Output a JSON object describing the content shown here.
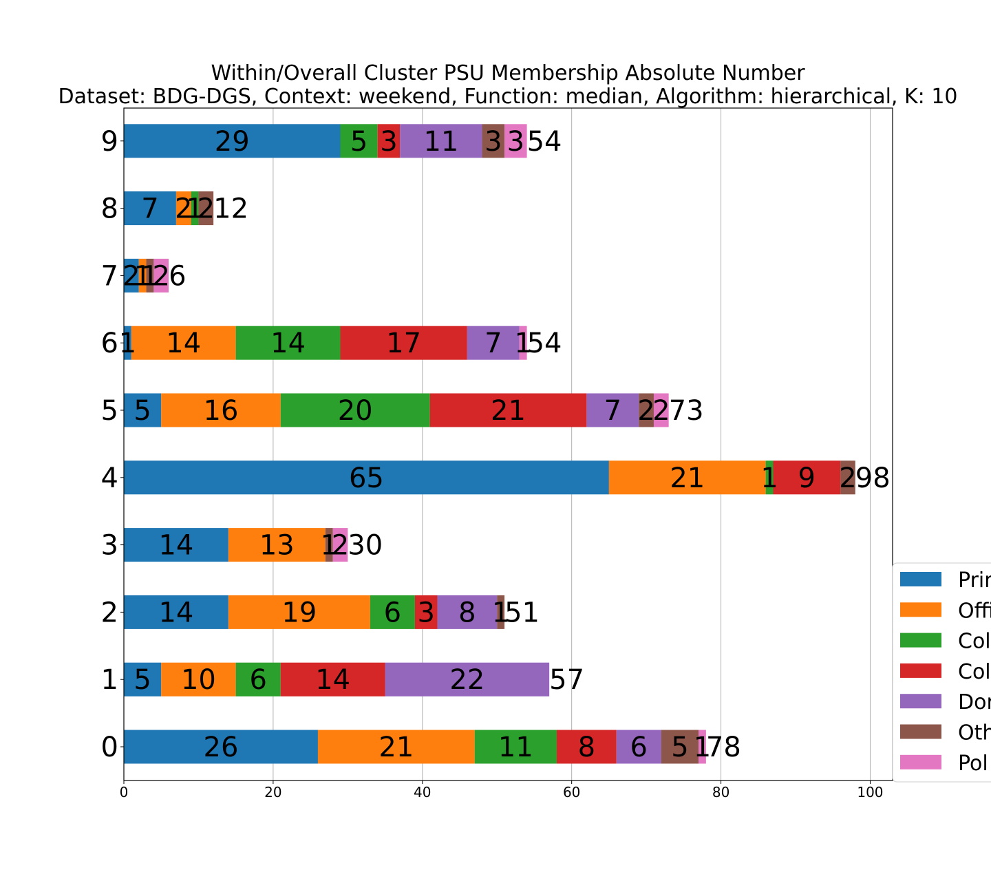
{
  "chart_data": {
    "type": "bar",
    "orientation": "horizontal",
    "stacked": true,
    "title": "Within/Overall Cluster PSU Membership Absolute Number",
    "subtitle": "Dataset: BDG-DGS, Context: weekend, Function: median, Algorithm: hierarchical, K: 10",
    "xlabel": "",
    "ylabel": "",
    "xlim": [
      0,
      103
    ],
    "xticks": [
      0,
      20,
      40,
      60,
      80,
      100
    ],
    "grid": "x",
    "legend_position": "right",
    "categories": [
      "0",
      "1",
      "2",
      "3",
      "4",
      "5",
      "6",
      "7",
      "8",
      "9"
    ],
    "series": [
      {
        "name": "Prim",
        "color": "#1f77b4",
        "values": [
          26,
          5,
          14,
          14,
          65,
          5,
          1,
          2,
          7,
          29
        ]
      },
      {
        "name": "Offi",
        "color": "#ff7f0e",
        "values": [
          21,
          10,
          19,
          13,
          21,
          16,
          14,
          1,
          2,
          0
        ]
      },
      {
        "name": "Col",
        "color": "#2ca02c",
        "values": [
          11,
          6,
          6,
          0,
          1,
          20,
          14,
          0,
          1,
          5
        ]
      },
      {
        "name": "Col",
        "color": "#d62728",
        "values": [
          8,
          14,
          3,
          0,
          9,
          21,
          17,
          0,
          0,
          3
        ]
      },
      {
        "name": "Dor",
        "color": "#9467bd",
        "values": [
          6,
          22,
          8,
          0,
          0,
          7,
          7,
          0,
          0,
          11
        ]
      },
      {
        "name": "Oth",
        "color": "#8c564b",
        "values": [
          5,
          0,
          1,
          1,
          2,
          2,
          0,
          1,
          2,
          3
        ]
      },
      {
        "name": "Pol",
        "color": "#e377c2",
        "values": [
          1,
          0,
          0,
          2,
          0,
          2,
          1,
          2,
          0,
          3
        ]
      }
    ],
    "totals": [
      78,
      57,
      51,
      30,
      98,
      73,
      54,
      6,
      12,
      54
    ]
  }
}
